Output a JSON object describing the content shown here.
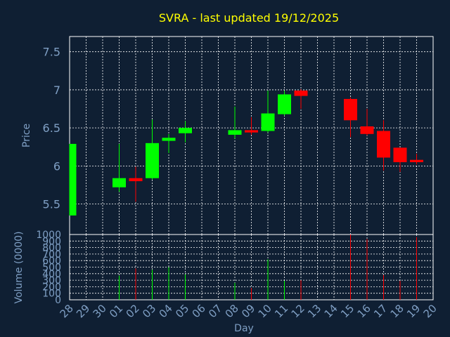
{
  "chart_data": [
    {
      "type": "candlestick",
      "title": "SVRA - last updated 19/12/2025",
      "ylabel": "Price",
      "ylim": [
        5.1,
        7.7
      ],
      "yticks": [
        5.5,
        6,
        6.5,
        7,
        7.5
      ],
      "ytick_labels": [
        "5.5",
        "6",
        "6.5",
        "7",
        "7.5"
      ],
      "categories": [
        "28",
        "29",
        "30",
        "01",
        "02",
        "03",
        "04",
        "05",
        "06",
        "07",
        "08",
        "09",
        "10",
        "11",
        "12",
        "13",
        "14",
        "15",
        "16",
        "17",
        "18",
        "19",
        "20"
      ],
      "candles": [
        {
          "day": "28",
          "open": 5.35,
          "close": 6.29,
          "high": 6.29,
          "low": 5.35,
          "color": "#00ff00"
        },
        {
          "day": "01",
          "open": 5.72,
          "close": 5.84,
          "high": 6.29,
          "low": 5.66,
          "color": "#00ff00"
        },
        {
          "day": "02",
          "open": 5.84,
          "close": 5.8,
          "high": 5.99,
          "low": 5.53,
          "color": "#ff0000"
        },
        {
          "day": "03",
          "open": 5.84,
          "close": 6.3,
          "high": 6.61,
          "low": 5.82,
          "color": "#00ff00"
        },
        {
          "day": "04",
          "open": 6.33,
          "close": 6.37,
          "high": 6.42,
          "low": 6.17,
          "color": "#00ff00"
        },
        {
          "day": "05",
          "open": 6.43,
          "close": 6.5,
          "high": 6.59,
          "low": 6.31,
          "color": "#00ff00"
        },
        {
          "day": "08",
          "open": 6.41,
          "close": 6.47,
          "high": 6.78,
          "low": 6.36,
          "color": "#00ff00"
        },
        {
          "day": "09",
          "open": 6.47,
          "close": 6.44,
          "high": 6.64,
          "low": 6.41,
          "color": "#ff0000"
        },
        {
          "day": "10",
          "open": 6.46,
          "close": 6.69,
          "high": 6.99,
          "low": 6.44,
          "color": "#00ff00"
        },
        {
          "day": "11",
          "open": 6.68,
          "close": 6.94,
          "high": 6.99,
          "low": 6.66,
          "color": "#00ff00"
        },
        {
          "day": "12",
          "open": 6.99,
          "close": 6.92,
          "high": 7.01,
          "low": 6.75,
          "color": "#ff0000"
        },
        {
          "day": "15",
          "open": 6.88,
          "close": 6.6,
          "high": 6.9,
          "low": 6.38,
          "color": "#ff0000"
        },
        {
          "day": "16",
          "open": 6.52,
          "close": 6.42,
          "high": 6.75,
          "low": 6.4,
          "color": "#ff0000"
        },
        {
          "day": "17",
          "open": 6.46,
          "close": 6.11,
          "high": 6.6,
          "low": 5.94,
          "color": "#ff0000"
        },
        {
          "day": "18",
          "open": 6.24,
          "close": 6.05,
          "high": 6.24,
          "low": 5.92,
          "color": "#ff0000"
        },
        {
          "day": "19",
          "open": 6.08,
          "close": 6.05,
          "high": 6.16,
          "low": 6.02,
          "color": "#ff0000"
        }
      ]
    },
    {
      "type": "bar",
      "ylabel": "Volume (0000)",
      "xlabel": "Day",
      "ylim": [
        0,
        1000
      ],
      "yticks": [
        0,
        100,
        200,
        300,
        400,
        500,
        600,
        700,
        800,
        900,
        1000
      ],
      "ytick_labels": [
        "0",
        "100",
        "200",
        "300",
        "400",
        "500",
        "600",
        "700",
        "800",
        "900",
        "1000"
      ],
      "categories": [
        "28",
        "29",
        "30",
        "01",
        "02",
        "03",
        "04",
        "05",
        "06",
        "07",
        "08",
        "09",
        "10",
        "11",
        "12",
        "13",
        "14",
        "15",
        "16",
        "17",
        "18",
        "19",
        "20"
      ],
      "bars": [
        {
          "day": "01",
          "value": 370,
          "color": "#00ff00"
        },
        {
          "day": "02",
          "value": 480,
          "color": "#ff0000"
        },
        {
          "day": "03",
          "value": 460,
          "color": "#00ff00"
        },
        {
          "day": "04",
          "value": 500,
          "color": "#00ff00"
        },
        {
          "day": "05",
          "value": 390,
          "color": "#00ff00"
        },
        {
          "day": "08",
          "value": 260,
          "color": "#00ff00"
        },
        {
          "day": "09",
          "value": 180,
          "color": "#ff0000"
        },
        {
          "day": "10",
          "value": 620,
          "color": "#00ff00"
        },
        {
          "day": "11",
          "value": 290,
          "color": "#00ff00"
        },
        {
          "day": "12",
          "value": 300,
          "color": "#ff0000"
        },
        {
          "day": "15",
          "value": 1000,
          "color": "#ff0000"
        },
        {
          "day": "16",
          "value": 930,
          "color": "#ff0000"
        },
        {
          "day": "17",
          "value": 380,
          "color": "#ff0000"
        },
        {
          "day": "18",
          "value": 290,
          "color": "#ff0000"
        },
        {
          "day": "19",
          "value": 960,
          "color": "#ff0000"
        }
      ]
    }
  ],
  "colors": {
    "background": "#0f1f33",
    "title": "#ffff00",
    "axis_text": "#7f9fc4",
    "grid": "#ffffff",
    "up": "#00ff00",
    "down": "#ff0000"
  }
}
